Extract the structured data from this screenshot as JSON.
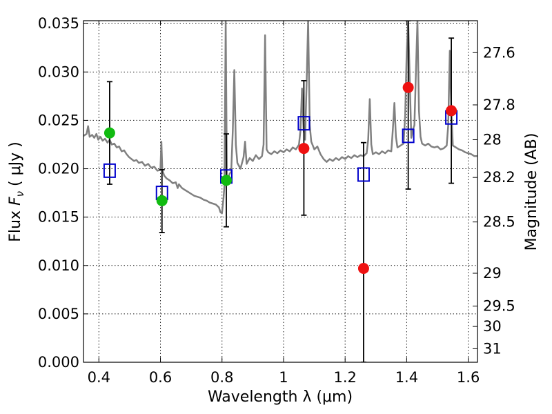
{
  "chart_data": {
    "type": "scatter",
    "xlabel": "Wavelength  λ (μm)",
    "ylabel": "Flux  F_ν  ( μJy )",
    "ylabel_parts": {
      "prefix": "Flux  ",
      "symbol": "F",
      "sub": "ν",
      "unit": "  ( μJy )"
    },
    "y2label": "Magnitude (AB)",
    "xlim": [
      0.35,
      1.63
    ],
    "ylim": [
      0.0,
      0.0353
    ],
    "grid": true,
    "x_ticks": [
      {
        "v": 0.4,
        "label": "0.4"
      },
      {
        "v": 0.6,
        "label": "0.6"
      },
      {
        "v": 0.8,
        "label": "0.8"
      },
      {
        "v": 1.0,
        "label": "1"
      },
      {
        "v": 1.2,
        "label": "1.2"
      },
      {
        "v": 1.4,
        "label": "1.4"
      },
      {
        "v": 1.6,
        "label": "1.6"
      }
    ],
    "y_ticks": [
      {
        "v": 0.0,
        "label": "0.000"
      },
      {
        "v": 0.005,
        "label": "0.005"
      },
      {
        "v": 0.01,
        "label": "0.010"
      },
      {
        "v": 0.015,
        "label": "0.015"
      },
      {
        "v": 0.02,
        "label": "0.020"
      },
      {
        "v": 0.025,
        "label": "0.025"
      },
      {
        "v": 0.03,
        "label": "0.030"
      },
      {
        "v": 0.035,
        "label": "0.035"
      }
    ],
    "mag_ticks": [
      {
        "flux": 0.032,
        "label": "27.6"
      },
      {
        "flux": 0.0266,
        "label": "27.8"
      },
      {
        "flux": 0.023,
        "label": "28"
      },
      {
        "flux": 0.0191,
        "label": "28.2"
      },
      {
        "flux": 0.0145,
        "label": "28.5"
      },
      {
        "flux": 0.0092,
        "label": "29"
      },
      {
        "flux": 0.0058,
        "label": "29.5"
      },
      {
        "flux": 0.0037,
        "label": "30"
      },
      {
        "flux": 0.0014,
        "label": "31"
      }
    ],
    "series": [
      {
        "kind": "model_sed",
        "color": "#808080",
        "points": [
          [
            0.35,
            0.0234
          ],
          [
            0.36,
            0.0236
          ],
          [
            0.365,
            0.0244
          ],
          [
            0.37,
            0.0233
          ],
          [
            0.378,
            0.0235
          ],
          [
            0.385,
            0.0232
          ],
          [
            0.392,
            0.0236
          ],
          [
            0.398,
            0.023
          ],
          [
            0.405,
            0.0233
          ],
          [
            0.412,
            0.0229
          ],
          [
            0.42,
            0.0231
          ],
          [
            0.428,
            0.0227
          ],
          [
            0.435,
            0.023
          ],
          [
            0.442,
            0.0225
          ],
          [
            0.45,
            0.0226
          ],
          [
            0.458,
            0.0222
          ],
          [
            0.466,
            0.0223
          ],
          [
            0.474,
            0.0218
          ],
          [
            0.482,
            0.0219
          ],
          [
            0.49,
            0.0215
          ],
          [
            0.498,
            0.0212
          ],
          [
            0.506,
            0.021
          ],
          [
            0.514,
            0.0208
          ],
          [
            0.522,
            0.0209
          ],
          [
            0.53,
            0.0206
          ],
          [
            0.54,
            0.0207
          ],
          [
            0.55,
            0.0203
          ],
          [
            0.56,
            0.0205
          ],
          [
            0.57,
            0.0201
          ],
          [
            0.58,
            0.0202
          ],
          [
            0.59,
            0.0198
          ],
          [
            0.6,
            0.0199
          ],
          [
            0.603,
            0.0228
          ],
          [
            0.606,
            0.0199
          ],
          [
            0.612,
            0.0193
          ],
          [
            0.62,
            0.019
          ],
          [
            0.63,
            0.0188
          ],
          [
            0.64,
            0.0185
          ],
          [
            0.65,
            0.0186
          ],
          [
            0.656,
            0.018
          ],
          [
            0.66,
            0.0184
          ],
          [
            0.67,
            0.018
          ],
          [
            0.68,
            0.0178
          ],
          [
            0.69,
            0.0176
          ],
          [
            0.7,
            0.0174
          ],
          [
            0.71,
            0.0172
          ],
          [
            0.72,
            0.0171
          ],
          [
            0.73,
            0.017
          ],
          [
            0.74,
            0.0168
          ],
          [
            0.75,
            0.0167
          ],
          [
            0.76,
            0.0165
          ],
          [
            0.77,
            0.0164
          ],
          [
            0.78,
            0.0163
          ],
          [
            0.79,
            0.016
          ],
          [
            0.795,
            0.0155
          ],
          [
            0.8,
            0.0154
          ],
          [
            0.805,
            0.017
          ],
          [
            0.808,
            0.0183
          ],
          [
            0.812,
            0.0353
          ],
          [
            0.816,
            0.0185
          ],
          [
            0.82,
            0.019
          ],
          [
            0.825,
            0.0195
          ],
          [
            0.83,
            0.0197
          ],
          [
            0.835,
            0.024
          ],
          [
            0.84,
            0.0302
          ],
          [
            0.845,
            0.0225
          ],
          [
            0.85,
            0.0206
          ],
          [
            0.86,
            0.02
          ],
          [
            0.87,
            0.0212
          ],
          [
            0.875,
            0.0228
          ],
          [
            0.88,
            0.0205
          ],
          [
            0.89,
            0.0211
          ],
          [
            0.9,
            0.0208
          ],
          [
            0.91,
            0.0214
          ],
          [
            0.92,
            0.021
          ],
          [
            0.93,
            0.0213
          ],
          [
            0.935,
            0.0225
          ],
          [
            0.94,
            0.0338
          ],
          [
            0.945,
            0.022
          ],
          [
            0.95,
            0.0217
          ],
          [
            0.96,
            0.0215
          ],
          [
            0.97,
            0.0218
          ],
          [
            0.98,
            0.0216
          ],
          [
            0.99,
            0.0219
          ],
          [
            1.0,
            0.0217
          ],
          [
            1.01,
            0.022
          ],
          [
            1.02,
            0.0218
          ],
          [
            1.03,
            0.0222
          ],
          [
            1.04,
            0.022
          ],
          [
            1.05,
            0.0225
          ],
          [
            1.055,
            0.024
          ],
          [
            1.06,
            0.0283
          ],
          [
            1.065,
            0.024
          ],
          [
            1.07,
            0.023
          ],
          [
            1.075,
            0.029
          ],
          [
            1.08,
            0.0353
          ],
          [
            1.085,
            0.0245
          ],
          [
            1.09,
            0.0228
          ],
          [
            1.1,
            0.022
          ],
          [
            1.11,
            0.0223
          ],
          [
            1.12,
            0.0215
          ],
          [
            1.13,
            0.021
          ],
          [
            1.14,
            0.0207
          ],
          [
            1.15,
            0.021
          ],
          [
            1.16,
            0.0208
          ],
          [
            1.17,
            0.0211
          ],
          [
            1.18,
            0.0209
          ],
          [
            1.19,
            0.0212
          ],
          [
            1.2,
            0.021
          ],
          [
            1.21,
            0.0213
          ],
          [
            1.22,
            0.0211
          ],
          [
            1.23,
            0.0214
          ],
          [
            1.24,
            0.0212
          ],
          [
            1.25,
            0.0214
          ],
          [
            1.26,
            0.0213
          ],
          [
            1.27,
            0.0216
          ],
          [
            1.275,
            0.023
          ],
          [
            1.28,
            0.0272
          ],
          [
            1.285,
            0.0225
          ],
          [
            1.29,
            0.0215
          ],
          [
            1.3,
            0.0217
          ],
          [
            1.31,
            0.0215
          ],
          [
            1.32,
            0.0218
          ],
          [
            1.33,
            0.0216
          ],
          [
            1.34,
            0.0219
          ],
          [
            1.35,
            0.0218
          ],
          [
            1.355,
            0.024
          ],
          [
            1.36,
            0.0268
          ],
          [
            1.365,
            0.0233
          ],
          [
            1.37,
            0.0222
          ],
          [
            1.38,
            0.0224
          ],
          [
            1.39,
            0.0226
          ],
          [
            1.395,
            0.0255
          ],
          [
            1.4,
            0.032
          ],
          [
            1.405,
            0.0353
          ],
          [
            1.41,
            0.029
          ],
          [
            1.415,
            0.0232
          ],
          [
            1.42,
            0.024
          ],
          [
            1.425,
            0.0245
          ],
          [
            1.43,
            0.03
          ],
          [
            1.435,
            0.0353
          ],
          [
            1.44,
            0.026
          ],
          [
            1.445,
            0.0233
          ],
          [
            1.45,
            0.0226
          ],
          [
            1.46,
            0.0224
          ],
          [
            1.47,
            0.0226
          ],
          [
            1.48,
            0.0223
          ],
          [
            1.49,
            0.0222
          ],
          [
            1.5,
            0.0223
          ],
          [
            1.51,
            0.022
          ],
          [
            1.52,
            0.0221
          ],
          [
            1.53,
            0.0224
          ],
          [
            1.535,
            0.0245
          ],
          [
            1.54,
            0.0322
          ],
          [
            1.545,
            0.026
          ],
          [
            1.55,
            0.0224
          ],
          [
            1.56,
            0.0222
          ],
          [
            1.57,
            0.022
          ],
          [
            1.58,
            0.0219
          ],
          [
            1.59,
            0.0217
          ],
          [
            1.6,
            0.0216
          ],
          [
            1.61,
            0.0215
          ],
          [
            1.62,
            0.0213
          ],
          [
            1.63,
            0.0213
          ]
        ]
      },
      {
        "kind": "errorbar",
        "color": "#000000",
        "bars": [
          {
            "x": 0.435,
            "ylo": 0.0184,
            "yhi": 0.029
          },
          {
            "x": 0.605,
            "ylo": 0.0134,
            "yhi": 0.0199
          },
          {
            "x": 0.814,
            "ylo": 0.014,
            "yhi": 0.0236
          },
          {
            "x": 1.066,
            "ylo": 0.0152,
            "yhi": 0.0291
          },
          {
            "x": 1.26,
            "ylo": 0.0,
            "yhi": 0.0227
          },
          {
            "x": 1.405,
            "ylo": 0.0179,
            "yhi": 0.0353
          },
          {
            "x": 1.545,
            "ylo": 0.0185,
            "yhi": 0.0335
          }
        ]
      },
      {
        "kind": "model_flux",
        "marker": "open-square",
        "color": "#0000cc",
        "points": [
          [
            0.435,
            0.0198
          ],
          [
            0.605,
            0.0175
          ],
          [
            0.814,
            0.0192
          ],
          [
            1.066,
            0.0247
          ],
          [
            1.26,
            0.0194
          ],
          [
            1.405,
            0.0234
          ],
          [
            1.545,
            0.0253
          ]
        ]
      },
      {
        "kind": "observed_optical",
        "marker": "filled-circle",
        "color": "#11bb11",
        "points": [
          [
            0.435,
            0.0237
          ],
          [
            0.605,
            0.0167
          ],
          [
            0.814,
            0.0188
          ]
        ]
      },
      {
        "kind": "observed_nir",
        "marker": "filled-circle",
        "color": "#ee1111",
        "points": [
          [
            1.066,
            0.0221
          ],
          [
            1.26,
            0.0097
          ],
          [
            1.405,
            0.0284
          ],
          [
            1.545,
            0.026
          ]
        ]
      }
    ]
  }
}
